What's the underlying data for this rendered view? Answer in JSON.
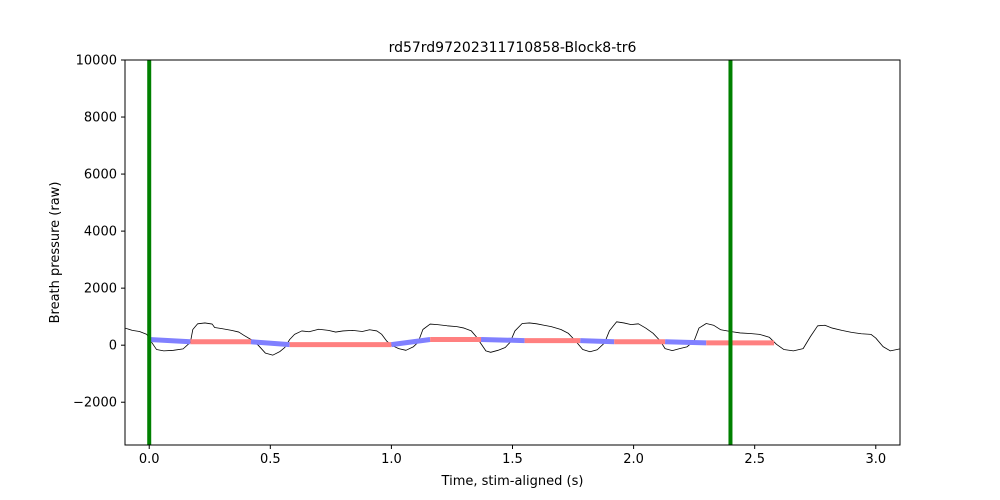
{
  "chart_data": {
    "type": "line",
    "title": "rd57rd97202311710858-Block8-tr6",
    "xlabel": "Time, stim-aligned (s)",
    "ylabel": "Breath pressure (raw)",
    "xlim": [
      -0.1,
      3.1
    ],
    "ylim": [
      -3500,
      10000
    ],
    "xticks": [
      0.0,
      0.5,
      1.0,
      1.5,
      2.0,
      2.5,
      3.0
    ],
    "xtick_labels": [
      "0.0",
      "0.5",
      "1.0",
      "1.5",
      "2.0",
      "2.5",
      "3.0"
    ],
    "yticks": [
      -2000,
      0,
      2000,
      4000,
      6000,
      8000,
      10000
    ],
    "ytick_labels": [
      "−2000",
      "0",
      "2000",
      "4000",
      "6000",
      "8000",
      "10000"
    ],
    "grid": false,
    "legend": "none",
    "vertical_lines": [
      {
        "x": 0.0,
        "color": "#008000"
      },
      {
        "x": 2.4,
        "color": "#008000"
      }
    ],
    "series": [
      {
        "color": "#000000",
        "points": [
          [
            -0.1,
            600
          ],
          [
            -0.07,
            520
          ],
          [
            -0.04,
            480
          ],
          [
            -0.01,
            380
          ],
          [
            0.01,
            100
          ],
          [
            0.03,
            -150
          ],
          [
            0.06,
            -200
          ],
          [
            0.1,
            -180
          ],
          [
            0.14,
            -130
          ],
          [
            0.17,
            100
          ],
          [
            0.18,
            550
          ],
          [
            0.2,
            750
          ],
          [
            0.23,
            780
          ],
          [
            0.26,
            740
          ],
          [
            0.27,
            620
          ],
          [
            0.3,
            580
          ],
          [
            0.34,
            520
          ],
          [
            0.37,
            460
          ],
          [
            0.39,
            350
          ],
          [
            0.42,
            200
          ],
          [
            0.45,
            0
          ],
          [
            0.48,
            -280
          ],
          [
            0.51,
            -350
          ],
          [
            0.54,
            -220
          ],
          [
            0.56,
            -80
          ],
          [
            0.58,
            200
          ],
          [
            0.6,
            380
          ],
          [
            0.63,
            500
          ],
          [
            0.66,
            470
          ],
          [
            0.7,
            560
          ],
          [
            0.74,
            520
          ],
          [
            0.77,
            460
          ],
          [
            0.8,
            500
          ],
          [
            0.84,
            520
          ],
          [
            0.88,
            480
          ],
          [
            0.91,
            540
          ],
          [
            0.94,
            500
          ],
          [
            0.96,
            380
          ],
          [
            0.98,
            150
          ],
          [
            1.0,
            0
          ],
          [
            1.03,
            -120
          ],
          [
            1.06,
            -180
          ],
          [
            1.09,
            -60
          ],
          [
            1.11,
            100
          ],
          [
            1.13,
            550
          ],
          [
            1.16,
            740
          ],
          [
            1.19,
            720
          ],
          [
            1.23,
            680
          ],
          [
            1.27,
            650
          ],
          [
            1.3,
            600
          ],
          [
            1.33,
            500
          ],
          [
            1.35,
            300
          ],
          [
            1.37,
            50
          ],
          [
            1.39,
            -200
          ],
          [
            1.41,
            -250
          ],
          [
            1.44,
            -180
          ],
          [
            1.47,
            -80
          ],
          [
            1.49,
            100
          ],
          [
            1.51,
            500
          ],
          [
            1.54,
            760
          ],
          [
            1.57,
            780
          ],
          [
            1.6,
            750
          ],
          [
            1.63,
            700
          ],
          [
            1.66,
            650
          ],
          [
            1.7,
            550
          ],
          [
            1.73,
            420
          ],
          [
            1.76,
            150
          ],
          [
            1.79,
            -150
          ],
          [
            1.82,
            -230
          ],
          [
            1.85,
            -160
          ],
          [
            1.88,
            80
          ],
          [
            1.9,
            500
          ],
          [
            1.93,
            820
          ],
          [
            1.96,
            780
          ],
          [
            1.99,
            720
          ],
          [
            2.02,
            750
          ],
          [
            2.05,
            600
          ],
          [
            2.08,
            420
          ],
          [
            2.11,
            150
          ],
          [
            2.13,
            -120
          ],
          [
            2.16,
            -190
          ],
          [
            2.19,
            -120
          ],
          [
            2.22,
            -60
          ],
          [
            2.25,
            150
          ],
          [
            2.27,
            600
          ],
          [
            2.3,
            760
          ],
          [
            2.33,
            700
          ],
          [
            2.36,
            540
          ],
          [
            2.4,
            480
          ],
          [
            2.44,
            430
          ],
          [
            2.48,
            410
          ],
          [
            2.52,
            380
          ],
          [
            2.56,
            280
          ],
          [
            2.59,
            30
          ],
          [
            2.62,
            -150
          ],
          [
            2.66,
            -200
          ],
          [
            2.7,
            -120
          ],
          [
            2.73,
            300
          ],
          [
            2.76,
            680
          ],
          [
            2.79,
            700
          ],
          [
            2.82,
            600
          ],
          [
            2.86,
            520
          ],
          [
            2.9,
            450
          ],
          [
            2.94,
            400
          ],
          [
            2.98,
            380
          ],
          [
            3.0,
            250
          ],
          [
            3.03,
            -50
          ],
          [
            3.06,
            -200
          ],
          [
            3.1,
            -130
          ]
        ]
      },
      {
        "color": "#8080ff",
        "points": [
          [
            0.0,
            200
          ],
          [
            0.17,
            120
          ]
        ]
      },
      {
        "color": "#ff8080",
        "points": [
          [
            0.17,
            120
          ],
          [
            0.42,
            120
          ]
        ]
      },
      {
        "color": "#8080ff",
        "points": [
          [
            0.42,
            120
          ],
          [
            0.58,
            20
          ]
        ]
      },
      {
        "color": "#ff8080",
        "points": [
          [
            0.58,
            20
          ],
          [
            1.0,
            20
          ]
        ]
      },
      {
        "color": "#8080ff",
        "points": [
          [
            1.0,
            20
          ],
          [
            1.16,
            200
          ]
        ]
      },
      {
        "color": "#ff8080",
        "points": [
          [
            1.16,
            200
          ],
          [
            1.37,
            200
          ]
        ]
      },
      {
        "color": "#8080ff",
        "points": [
          [
            1.37,
            200
          ],
          [
            1.55,
            160
          ]
        ]
      },
      {
        "color": "#ff8080",
        "points": [
          [
            1.55,
            160
          ],
          [
            1.78,
            160
          ]
        ]
      },
      {
        "color": "#8080ff",
        "points": [
          [
            1.78,
            160
          ],
          [
            1.92,
            120
          ]
        ]
      },
      {
        "color": "#ff8080",
        "points": [
          [
            1.92,
            120
          ],
          [
            2.13,
            120
          ]
        ]
      },
      {
        "color": "#8080ff",
        "points": [
          [
            2.13,
            120
          ],
          [
            2.3,
            80
          ]
        ]
      },
      {
        "color": "#ff8080",
        "points": [
          [
            2.3,
            80
          ],
          [
            2.58,
            80
          ]
        ]
      }
    ]
  }
}
